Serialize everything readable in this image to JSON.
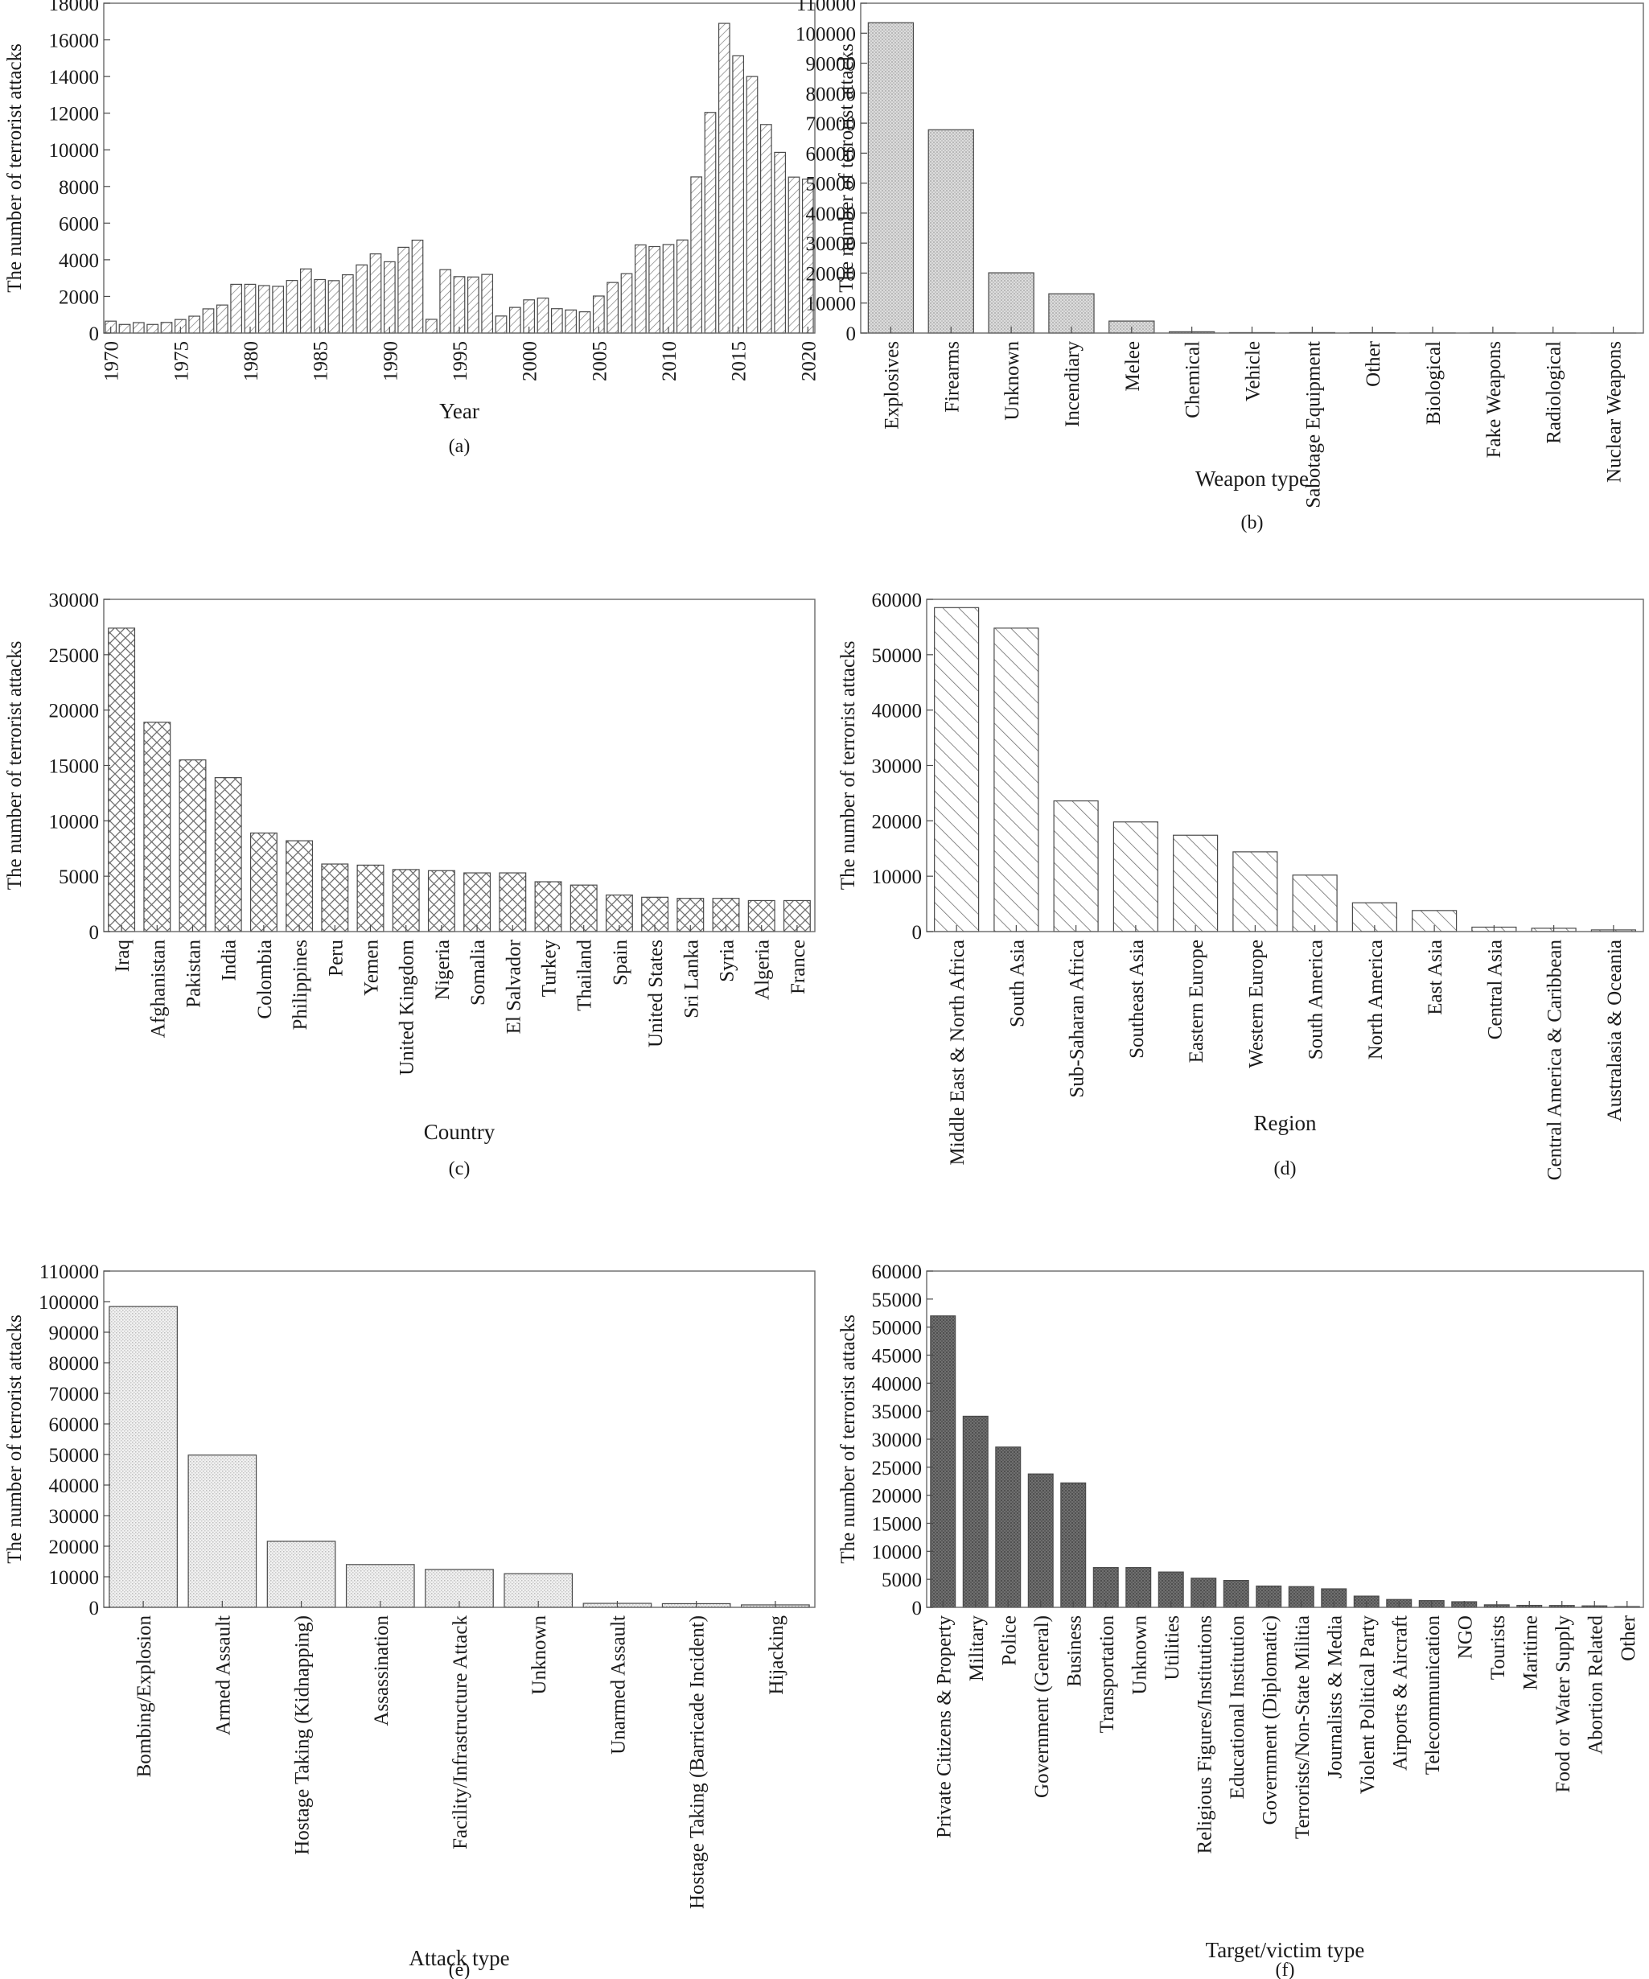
{
  "chart_data": [
    {
      "panel_label": "(a)",
      "type": "bar",
      "xlabel": "Year",
      "ylabel": "The number of terrorist attacks",
      "ylim": [
        0,
        18000
      ],
      "yticks": [
        0,
        2000,
        4000,
        6000,
        8000,
        10000,
        12000,
        14000,
        16000,
        18000
      ],
      "categories": [
        1970,
        1971,
        1972,
        1973,
        1974,
        1975,
        1976,
        1977,
        1978,
        1979,
        1980,
        1981,
        1982,
        1983,
        1984,
        1985,
        1986,
        1987,
        1988,
        1989,
        1990,
        1991,
        1992,
        1993,
        1994,
        1995,
        1996,
        1997,
        1998,
        1999,
        2000,
        2001,
        2002,
        2003,
        2004,
        2005,
        2006,
        2007,
        2008,
        2009,
        2010,
        2011,
        2012,
        2013,
        2014,
        2015,
        2016,
        2017,
        2018,
        2019,
        2020
      ],
      "values": [
        650,
        470,
        570,
        470,
        580,
        740,
        920,
        1320,
        1530,
        2660,
        2660,
        2590,
        2550,
        2870,
        3500,
        2920,
        2860,
        3180,
        3720,
        4320,
        3890,
        4680,
        5070,
        750,
        3460,
        3080,
        3060,
        3200,
        930,
        1400,
        1810,
        1910,
        1330,
        1260,
        1160,
        2020,
        2760,
        3240,
        4810,
        4720,
        4830,
        5080,
        8520,
        12040,
        16900,
        15130,
        14000,
        11380,
        9860,
        8510,
        8400
      ],
      "category_labels": [
        "1970",
        "1975",
        "1980",
        "1985",
        "1990",
        "1995",
        "2000",
        "2005",
        "2010",
        "2015",
        "2020"
      ],
      "pattern": "diagonal-hatch",
      "grid": false
    },
    {
      "panel_label": "(b)",
      "type": "bar",
      "xlabel": "Weapon type",
      "ylabel": "The number of terrorist attacks",
      "ylim": [
        0,
        110000
      ],
      "yticks": [
        0,
        10000,
        20000,
        30000,
        40000,
        50000,
        60000,
        70000,
        80000,
        90000,
        100000,
        110000
      ],
      "categories": [
        "Explosives",
        "Firearms",
        "Unknown",
        "Incendiary",
        "Melee",
        "Chemical",
        "Vehicle",
        "Sabotage Equipment",
        "Other",
        "Biological",
        "Fake Weapons",
        "Radiological",
        "Nuclear Weapons"
      ],
      "values": [
        103500,
        67800,
        20100,
        13100,
        4000,
        420,
        150,
        150,
        120,
        35,
        35,
        15,
        5
      ],
      "pattern": "light-dots",
      "grid": false
    },
    {
      "panel_label": "(c)",
      "type": "bar",
      "xlabel": "Country",
      "ylabel": "The number of terrorist attacks",
      "ylim": [
        0,
        30000
      ],
      "yticks": [
        0,
        5000,
        10000,
        15000,
        20000,
        25000,
        30000
      ],
      "categories": [
        "Iraq",
        "Afghanistan",
        "Pakistan",
        "India",
        "Colombia",
        "Philippines",
        "Peru",
        "Yemen",
        "United Kingdom",
        "Nigeria",
        "Somalia",
        "El Salvador",
        "Turkey",
        "Thailand",
        "Spain",
        "United States",
        "Sri Lanka",
        "Syria",
        "Algeria",
        "France"
      ],
      "values": [
        27400,
        18900,
        15500,
        13900,
        8900,
        8200,
        6100,
        6000,
        5600,
        5500,
        5300,
        5300,
        4500,
        4200,
        3300,
        3100,
        3000,
        3000,
        2800,
        2800
      ],
      "pattern": "crosshatch",
      "grid": false
    },
    {
      "panel_label": "(d)",
      "type": "bar",
      "xlabel": "Region",
      "ylabel": "The number of terrorist attacks",
      "ylim": [
        0,
        60000
      ],
      "yticks": [
        0,
        10000,
        20000,
        30000,
        40000,
        50000,
        60000
      ],
      "categories": [
        "Middle East & North Africa",
        "South Asia",
        "Sub-Saharan Africa",
        "Southeast Asia",
        "Eastern Europe",
        "Western Europe",
        "South America",
        "North America",
        "East Asia",
        "Central Asia",
        "Central America & Caribbean",
        "Australasia & Oceania"
      ],
      "values": [
        58500,
        54800,
        23600,
        19800,
        17400,
        14400,
        10200,
        5200,
        3800,
        800,
        600,
        300
      ],
      "pattern": "back-diagonal-hatch",
      "grid": false
    },
    {
      "panel_label": "(e)",
      "type": "bar",
      "xlabel": "Attack type",
      "ylabel": "The number of terrorist attacks",
      "ylim": [
        0,
        110000
      ],
      "yticks": [
        0,
        10000,
        20000,
        30000,
        40000,
        50000,
        60000,
        70000,
        80000,
        90000,
        100000,
        110000
      ],
      "categories": [
        "Bombing/Explosion",
        "Armed Assault",
        "Hostage Taking (Kidnapping)",
        "Assassination",
        "Facility/Infrastructure Attack",
        "Unknown",
        "Unarmed Assault",
        "Hostage Taking (Barricade Incident)",
        "Hijacking"
      ],
      "values": [
        98400,
        49800,
        21600,
        14000,
        12400,
        11000,
        1300,
        1200,
        800
      ],
      "pattern": "fine-dots",
      "grid": false
    },
    {
      "panel_label": "(f)",
      "type": "bar",
      "xlabel": "Target/victim type",
      "ylabel": "The number of terrorist attacks",
      "ylim": [
        0,
        60000
      ],
      "yticks": [
        0,
        5000,
        10000,
        15000,
        20000,
        25000,
        30000,
        35000,
        40000,
        45000,
        50000,
        55000,
        60000
      ],
      "categories": [
        "Private Citizens & Property",
        "Military",
        "Police",
        "Government (General)",
        "Business",
        "Transportation",
        "Unknown",
        "Utilities",
        "Religious Figures/Institutions",
        "Educational Institution",
        "Government (Diplomatic)",
        "Terrorists/Non-State Militia",
        "Journalists & Media",
        "Violent Political Party",
        "Airports & Aircraft",
        "Telecommunication",
        "NGO",
        "Tourists",
        "Maritime",
        "Food or Water Supply",
        "Abortion Related",
        "Other"
      ],
      "values": [
        52000,
        34100,
        28600,
        23800,
        22200,
        7100,
        7100,
        6300,
        5200,
        4800,
        3800,
        3700,
        3300,
        2000,
        1400,
        1200,
        1000,
        450,
        350,
        330,
        260,
        140
      ],
      "pattern": "dark-dots",
      "grid": false
    }
  ]
}
